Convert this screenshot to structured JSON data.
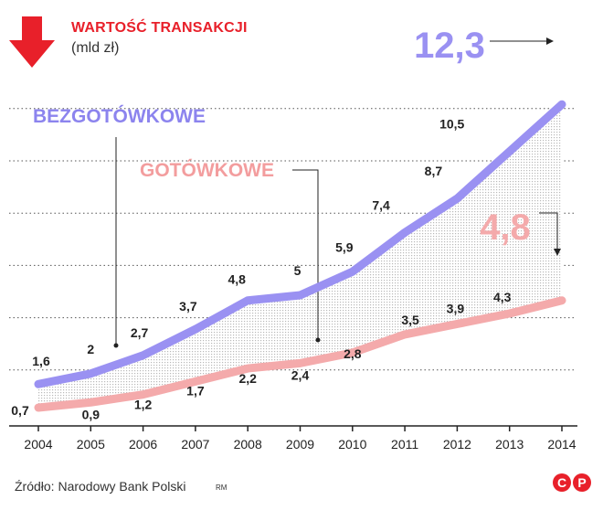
{
  "header": {
    "title": "WARTOŚĆ TRANSAKCJI",
    "unit": "(mld zł)"
  },
  "footer": {
    "source": "Źródło: Narodowy Bank Polski",
    "author": "RM",
    "copyright_mark": "CP"
  },
  "colors": {
    "accent_red": "#e8202a",
    "bezgotowkowe": "#9a91f2",
    "gotowkowe": "#f4aaab",
    "bezgotowkowe_label": "#8c84ee",
    "gotowkowe_label": "#f39d9e"
  },
  "icons": {
    "arrow": "down-arrow-icon",
    "copyright": "copyright-p-icon"
  },
  "chart_data": {
    "type": "line",
    "title": "WARTOŚĆ TRANSAKCJI",
    "ylabel": "(mld zł)",
    "xlabel": "",
    "x": [
      "2004",
      "2005",
      "2006",
      "2007",
      "2008",
      "2009",
      "2010",
      "2011",
      "2012",
      "2013",
      "2014"
    ],
    "ylim": [
      0,
      13
    ],
    "grid": true,
    "series": [
      {
        "name": "BEZGOTÓWKOWE",
        "values": [
          1.6,
          2,
          2.7,
          3.7,
          4.8,
          5,
          5.9,
          7.4,
          8.7,
          10.5,
          12.3
        ],
        "labels": [
          "1,6",
          "2",
          "2,7",
          "3,7",
          "4,8",
          "5",
          "5,9",
          "7,4",
          "8,7",
          "10,5",
          "12,3"
        ]
      },
      {
        "name": "GOTÓWKOWE",
        "values": [
          0.7,
          0.9,
          1.2,
          1.7,
          2.2,
          2.4,
          2.8,
          3.5,
          3.9,
          4.3,
          4.8
        ],
        "labels": [
          "0,7",
          "0,9",
          "1,2",
          "1,7",
          "2,2",
          "2,4",
          "2,8",
          "3,5",
          "3,9",
          "4,3",
          "4,8"
        ]
      }
    ]
  }
}
